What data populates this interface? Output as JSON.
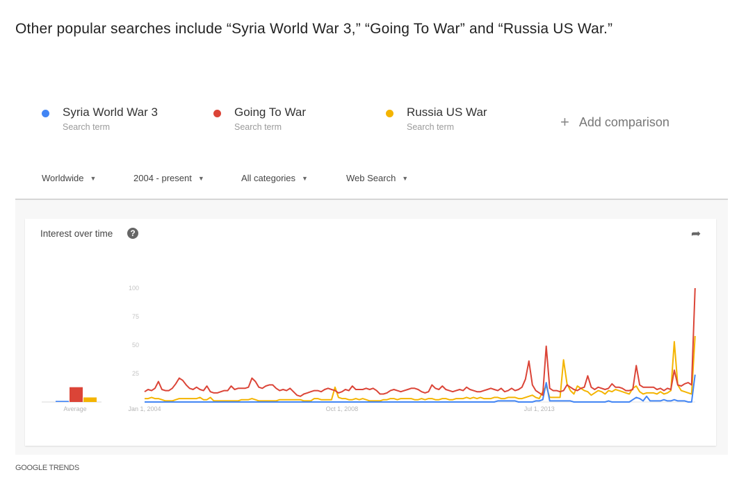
{
  "caption": "Other popular searches include “Syria World War 3,” “Going To War” and “Russia US War.”",
  "terms": [
    {
      "name": "Syria World War 3",
      "sub": "Search term",
      "color": "#4285f4"
    },
    {
      "name": "Going To War",
      "sub": "Search term",
      "color": "#db4437"
    },
    {
      "name": "Russia US War",
      "sub": "Search term",
      "color": "#f4b400"
    }
  ],
  "add_comparison": "Add comparison",
  "filters": [
    {
      "label": "Worldwide"
    },
    {
      "label": "2004 - present"
    },
    {
      "label": "All categories"
    },
    {
      "label": "Web Search"
    }
  ],
  "card": {
    "title": "Interest over time",
    "help_icon": "question-circle-icon",
    "share_icon": "share-arrow-icon"
  },
  "footer": "GOOGLE TRENDS",
  "chart_data": {
    "type": "line",
    "title": "Interest over time",
    "x_start": "2004-01",
    "x_interval": "month",
    "x_tick_labels": [
      "Jan 1, 2004",
      "Oct 1, 2008",
      "Jul 1, 2013"
    ],
    "x_tick_months": [
      "2004-01",
      "2008-10",
      "2013-07"
    ],
    "y_ticks": [
      25,
      50,
      75,
      100
    ],
    "ylim": [
      0,
      100
    ],
    "grid": false,
    "average_label": "Average",
    "averages": [
      1,
      13,
      4
    ],
    "series": [
      {
        "name": "Syria World War 3",
        "color": "#4285f4",
        "values": [
          0,
          0,
          0,
          0,
          0,
          0,
          0,
          0,
          0,
          0,
          0,
          0,
          0,
          0,
          0,
          0,
          0,
          0,
          0,
          0,
          0,
          0,
          0,
          0,
          0,
          0,
          0,
          0,
          0,
          0,
          0,
          0,
          0,
          0,
          0,
          0,
          0,
          0,
          0,
          0,
          0,
          0,
          0,
          0,
          0,
          0,
          0,
          0,
          0,
          0,
          0,
          0,
          0,
          0,
          0,
          0,
          0,
          0,
          0,
          0,
          0,
          0,
          0,
          0,
          0,
          0,
          0,
          0,
          0,
          0,
          0,
          0,
          0,
          0,
          0,
          0,
          0,
          0,
          0,
          0,
          0,
          0,
          0,
          0,
          0,
          0,
          0,
          0,
          0,
          0,
          0,
          0,
          0,
          0,
          0,
          0,
          0,
          0,
          0,
          0,
          0,
          0,
          1,
          1,
          1,
          1,
          1,
          1,
          0,
          0,
          0,
          0,
          0,
          1,
          1,
          2,
          17,
          1,
          1,
          1,
          1,
          1,
          1,
          1,
          0,
          0,
          0,
          0,
          0,
          0,
          0,
          0,
          0,
          0,
          1,
          0,
          0,
          0,
          0,
          0,
          0,
          2,
          4,
          3,
          1,
          5,
          1,
          1,
          1,
          1,
          2,
          1,
          1,
          2,
          1,
          1,
          1,
          0,
          0,
          24
        ]
      },
      {
        "name": "Going To War",
        "color": "#db4437",
        "values": [
          9,
          11,
          10,
          12,
          18,
          11,
          10,
          10,
          12,
          16,
          21,
          19,
          15,
          12,
          11,
          13,
          11,
          10,
          14,
          9,
          8,
          8,
          9,
          10,
          10,
          14,
          11,
          12,
          12,
          12,
          13,
          21,
          18,
          13,
          12,
          14,
          15,
          15,
          12,
          10,
          11,
          10,
          12,
          9,
          6,
          5,
          7,
          8,
          9,
          10,
          10,
          9,
          11,
          12,
          11,
          10,
          8,
          9,
          11,
          10,
          14,
          11,
          11,
          11,
          12,
          11,
          12,
          10,
          7,
          7,
          8,
          10,
          11,
          10,
          9,
          10,
          11,
          12,
          12,
          11,
          9,
          8,
          9,
          15,
          12,
          11,
          14,
          11,
          10,
          9,
          10,
          11,
          10,
          13,
          11,
          10,
          9,
          9,
          10,
          11,
          12,
          11,
          10,
          12,
          9,
          10,
          12,
          10,
          11,
          13,
          20,
          36,
          15,
          10,
          8,
          6,
          49,
          12,
          10,
          10,
          9,
          10,
          15,
          13,
          11,
          10,
          12,
          13,
          23,
          13,
          11,
          13,
          12,
          11,
          12,
          16,
          13,
          13,
          12,
          10,
          10,
          11,
          32,
          15,
          13,
          13,
          13,
          13,
          11,
          12,
          10,
          12,
          11,
          28,
          15,
          14,
          16,
          17,
          15,
          100
        ]
      },
      {
        "name": "Russia US War",
        "color": "#f4b400",
        "values": [
          3,
          3,
          4,
          3,
          3,
          2,
          1,
          1,
          1,
          2,
          3,
          3,
          3,
          3,
          3,
          3,
          4,
          2,
          2,
          4,
          1,
          1,
          1,
          1,
          1,
          1,
          1,
          1,
          2,
          2,
          2,
          3,
          2,
          1,
          1,
          1,
          1,
          1,
          1,
          2,
          2,
          2,
          2,
          2,
          2,
          2,
          1,
          1,
          1,
          3,
          3,
          2,
          2,
          2,
          2,
          13,
          4,
          3,
          3,
          2,
          2,
          3,
          2,
          3,
          2,
          1,
          1,
          1,
          1,
          2,
          2,
          3,
          3,
          2,
          3,
          3,
          3,
          3,
          2,
          2,
          3,
          2,
          3,
          3,
          2,
          2,
          3,
          3,
          2,
          2,
          3,
          3,
          3,
          4,
          3,
          4,
          3,
          4,
          3,
          3,
          3,
          4,
          4,
          3,
          3,
          4,
          4,
          4,
          3,
          3,
          4,
          5,
          6,
          4,
          3,
          9,
          14,
          4,
          4,
          4,
          4,
          37,
          16,
          10,
          7,
          14,
          12,
          10,
          9,
          6,
          8,
          10,
          9,
          7,
          10,
          9,
          11,
          10,
          9,
          8,
          7,
          12,
          14,
          9,
          7,
          8,
          8,
          8,
          7,
          9,
          7,
          8,
          10,
          53,
          15,
          10,
          9,
          8,
          7,
          58
        ]
      }
    ]
  }
}
